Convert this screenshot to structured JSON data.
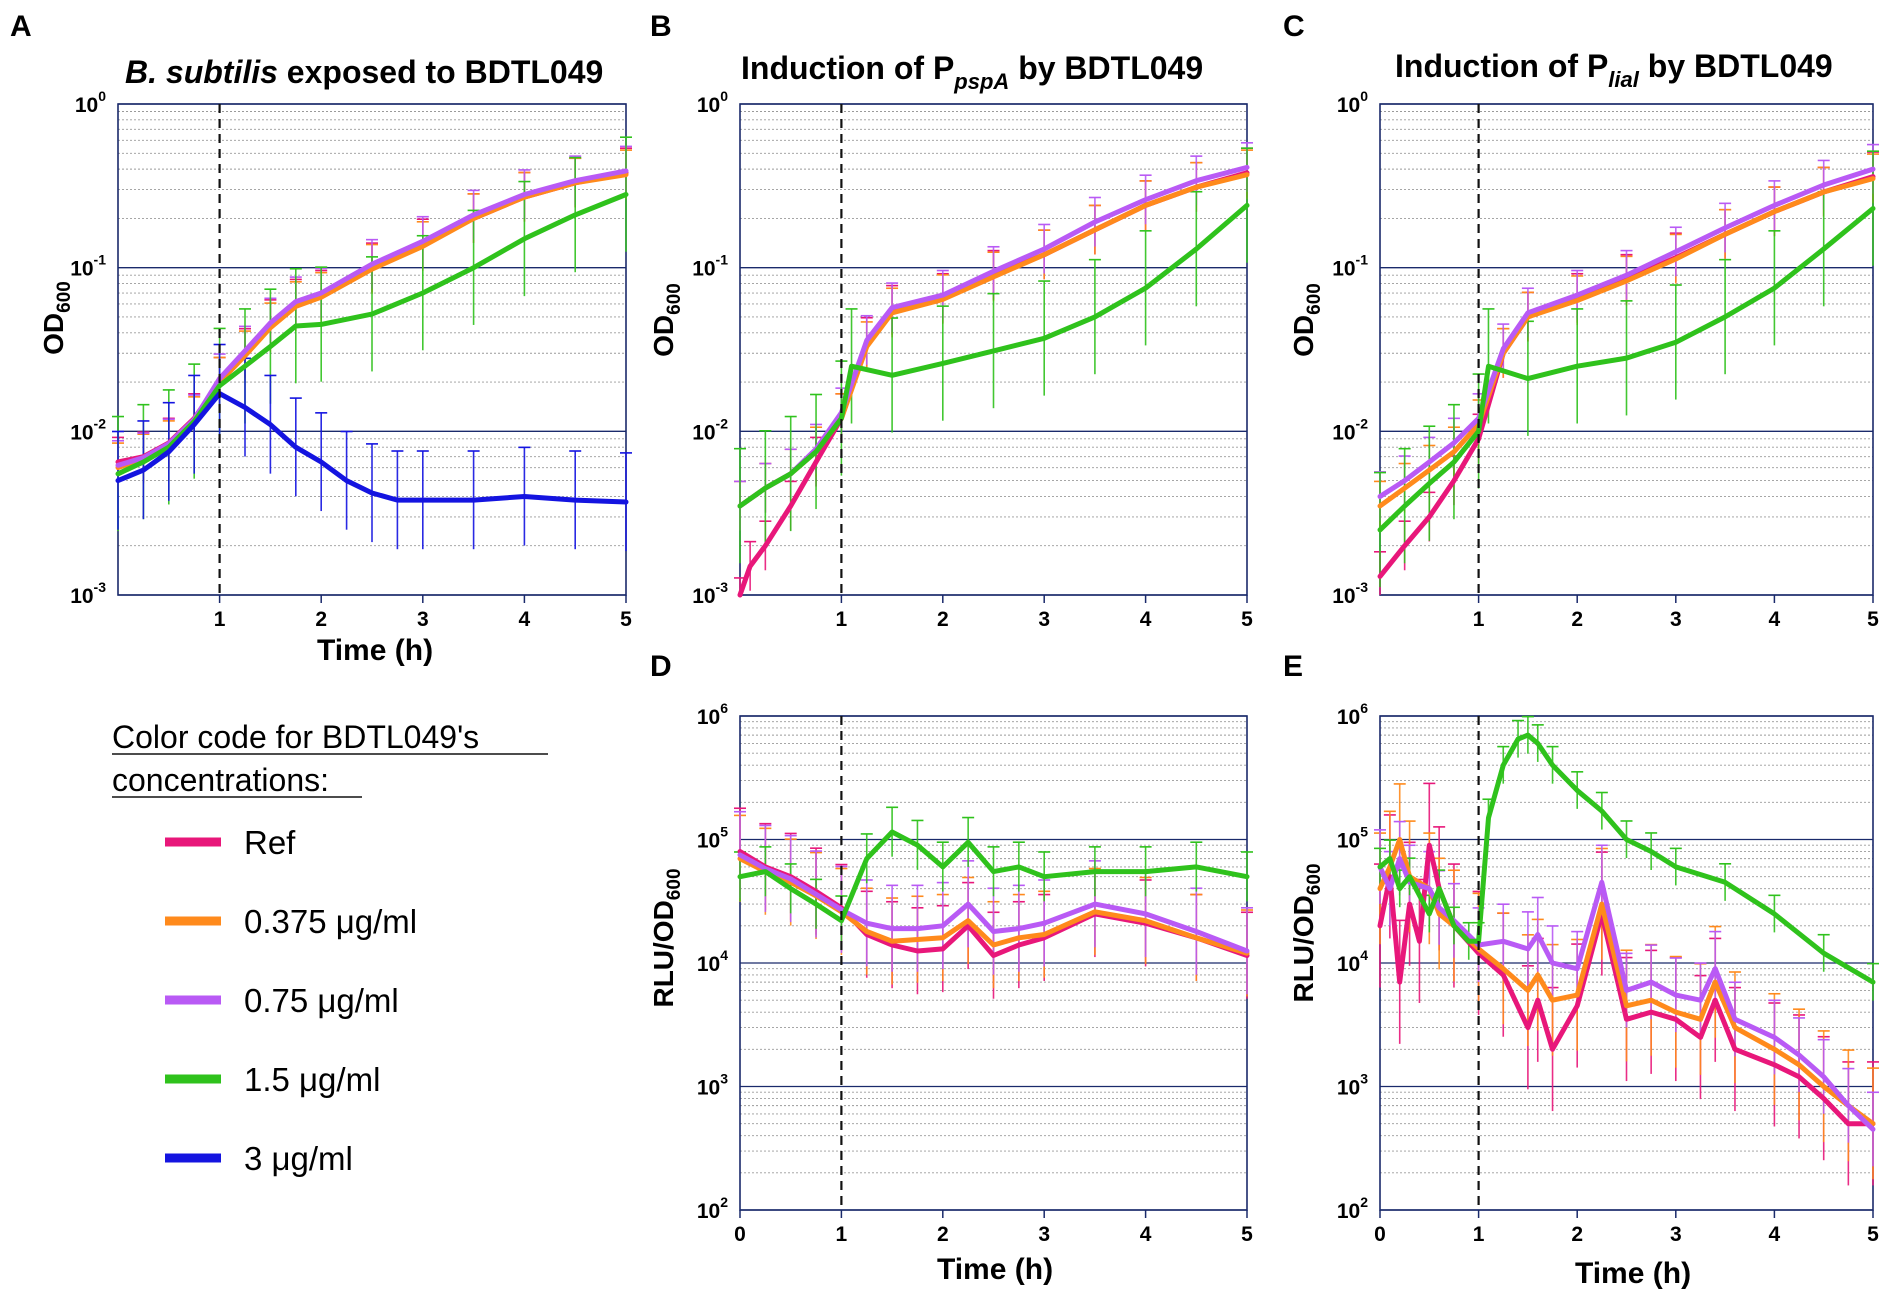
{
  "legend": {
    "title_line1": "Color code for BDTL049's",
    "title_line2": "concentrations:",
    "items": [
      {
        "label": "Ref",
        "color": "#e8177a"
      },
      {
        "label": "0.375 μg/ml",
        "color": "#ff8a1c"
      },
      {
        "label": "0.75 μg/ml",
        "color": "#b95af5"
      },
      {
        "label": "1.5 μg/ml",
        "color": "#2fc21c"
      },
      {
        "label": "3 μg/ml",
        "color": "#1414e0"
      }
    ]
  },
  "chart_data": [
    {
      "id": "A",
      "type": "line",
      "title_italic": "B. subtilis",
      "title_rest": " exposed to BDTL049",
      "ylabel_main": "OD",
      "ylabel_sub": "600",
      "xlabel": "Time (h)",
      "yscale": "log",
      "ylim_exp": [
        -3,
        0
      ],
      "xlim": [
        0,
        5
      ],
      "xticks": [
        1,
        2,
        3,
        4,
        5
      ],
      "vline": 1,
      "series": [
        {
          "name": "Ref",
          "color": "#e8177a",
          "x": [
            0,
            0.25,
            0.5,
            0.75,
            1,
            1.25,
            1.5,
            1.75,
            2,
            2.5,
            3,
            3.5,
            4,
            4.5,
            5
          ],
          "y": [
            0.0065,
            0.007,
            0.0085,
            0.012,
            0.02,
            0.03,
            0.045,
            0.06,
            0.068,
            0.1,
            0.14,
            0.2,
            0.27,
            0.33,
            0.38
          ],
          "err": 0.15
        },
        {
          "name": "0.375 μg/ml",
          "color": "#ff8a1c",
          "x": [
            0,
            0.25,
            0.5,
            0.75,
            1,
            1.25,
            1.5,
            1.75,
            2,
            2.5,
            3,
            3.5,
            4,
            4.5,
            5
          ],
          "y": [
            0.006,
            0.0068,
            0.0082,
            0.0115,
            0.02,
            0.029,
            0.043,
            0.058,
            0.066,
            0.098,
            0.135,
            0.2,
            0.27,
            0.33,
            0.37
          ],
          "err": 0.15
        },
        {
          "name": "0.75 μg/ml",
          "color": "#b95af5",
          "x": [
            0,
            0.25,
            0.5,
            0.75,
            1,
            1.25,
            1.5,
            1.75,
            2,
            2.5,
            3,
            3.5,
            4,
            4.5,
            5
          ],
          "y": [
            0.0062,
            0.0069,
            0.0084,
            0.0118,
            0.021,
            0.031,
            0.046,
            0.062,
            0.07,
            0.105,
            0.145,
            0.21,
            0.28,
            0.34,
            0.39
          ],
          "err": 0.15
        },
        {
          "name": "1.5 μg/ml",
          "color": "#2fc21c",
          "x": [
            0,
            0.25,
            0.5,
            0.75,
            1,
            1.25,
            1.5,
            1.75,
            2,
            2.5,
            3,
            3.5,
            4,
            4.5,
            5
          ],
          "y": [
            0.0055,
            0.0065,
            0.008,
            0.0115,
            0.019,
            0.025,
            0.033,
            0.044,
            0.045,
            0.052,
            0.07,
            0.1,
            0.15,
            0.21,
            0.28
          ],
          "err": 0.35
        },
        {
          "name": "3 μg/ml",
          "color": "#1414e0",
          "x": [
            0,
            0.25,
            0.5,
            0.75,
            1,
            1.25,
            1.5,
            1.75,
            2,
            2.25,
            2.5,
            2.75,
            3,
            3.5,
            4,
            4.5,
            5
          ],
          "y": [
            0.005,
            0.0058,
            0.0075,
            0.011,
            0.017,
            0.014,
            0.011,
            0.008,
            0.0065,
            0.005,
            0.0042,
            0.0038,
            0.0038,
            0.0038,
            0.004,
            0.0038,
            0.0037
          ],
          "err": 0.3
        }
      ]
    },
    {
      "id": "B",
      "type": "line",
      "title_main": "Induction of P",
      "title_sub": "pspA",
      "title_rest": " by BDTL049",
      "ylabel_main": "OD",
      "ylabel_sub": "600",
      "xlabel": "",
      "yscale": "log",
      "ylim_exp": [
        -3,
        0
      ],
      "xlim": [
        0,
        5
      ],
      "xticks": [
        1,
        2,
        3,
        4,
        5
      ],
      "vline": 1,
      "series": [
        {
          "name": "Ref",
          "color": "#e8177a",
          "x": [
            0,
            0.1,
            0.25,
            0.5,
            0.75,
            1,
            1.25,
            1.5,
            2,
            2.5,
            3,
            3.5,
            4,
            4.5,
            5
          ],
          "y": [
            0.0009,
            0.0015,
            0.002,
            0.0035,
            0.0065,
            0.012,
            0.035,
            0.055,
            0.065,
            0.09,
            0.12,
            0.17,
            0.24,
            0.31,
            0.38
          ],
          "err": 0.15
        },
        {
          "name": "0.375 μg/ml",
          "color": "#ff8a1c",
          "x": [
            0,
            0.25,
            0.5,
            0.75,
            1,
            1.25,
            1.5,
            2,
            2.5,
            3,
            3.5,
            4,
            4.5,
            5
          ],
          "y": [
            0.0035,
            0.0045,
            0.0055,
            0.0075,
            0.012,
            0.033,
            0.053,
            0.064,
            0.088,
            0.12,
            0.17,
            0.24,
            0.31,
            0.37
          ],
          "err": 0.15
        },
        {
          "name": "0.75 μg/ml",
          "color": "#b95af5",
          "x": [
            0,
            0.25,
            0.5,
            0.75,
            1,
            1.25,
            1.5,
            2,
            2.5,
            3,
            3.5,
            4,
            4.5,
            5
          ],
          "y": [
            0.0035,
            0.0045,
            0.0055,
            0.0078,
            0.013,
            0.036,
            0.057,
            0.068,
            0.095,
            0.13,
            0.19,
            0.26,
            0.34,
            0.41
          ],
          "err": 0.15
        },
        {
          "name": "1.5 μg/ml",
          "color": "#2fc21c",
          "x": [
            0,
            0.25,
            0.5,
            0.75,
            1,
            1.1,
            1.5,
            2,
            2.5,
            3,
            3.5,
            4,
            4.5,
            5
          ],
          "y": [
            0.0035,
            0.0045,
            0.0055,
            0.0075,
            0.012,
            0.025,
            0.022,
            0.026,
            0.031,
            0.037,
            0.05,
            0.075,
            0.13,
            0.24
          ],
          "err": 0.35
        }
      ]
    },
    {
      "id": "C",
      "type": "line",
      "title_main": "Induction of P",
      "title_sub": "lial",
      "title_rest": " by BDTL049",
      "ylabel_main": "OD",
      "ylabel_sub": "600",
      "xlabel": "",
      "yscale": "log",
      "ylim_exp": [
        -3,
        0
      ],
      "xlim": [
        0,
        5
      ],
      "xticks": [
        1,
        2,
        3,
        4,
        5
      ],
      "vline": 1,
      "series": [
        {
          "name": "Ref",
          "color": "#e8177a",
          "x": [
            0,
            0.25,
            0.5,
            0.75,
            1,
            1.25,
            1.5,
            2,
            2.5,
            3,
            3.5,
            4,
            4.5,
            5
          ],
          "y": [
            0.0013,
            0.002,
            0.003,
            0.005,
            0.009,
            0.03,
            0.05,
            0.065,
            0.085,
            0.115,
            0.16,
            0.22,
            0.29,
            0.36
          ],
          "err": 0.15
        },
        {
          "name": "0.375 μg/ml",
          "color": "#ff8a1c",
          "x": [
            0,
            0.25,
            0.5,
            0.75,
            1,
            1.25,
            1.5,
            2,
            2.5,
            3,
            3.5,
            4,
            4.5,
            5
          ],
          "y": [
            0.0035,
            0.0045,
            0.0058,
            0.0075,
            0.011,
            0.03,
            0.05,
            0.063,
            0.083,
            0.113,
            0.16,
            0.22,
            0.29,
            0.35
          ],
          "err": 0.15
        },
        {
          "name": "0.75 μg/ml",
          "color": "#b95af5",
          "x": [
            0,
            0.25,
            0.5,
            0.75,
            1,
            1.25,
            1.5,
            2,
            2.5,
            3,
            3.5,
            4,
            4.5,
            5
          ],
          "y": [
            0.004,
            0.005,
            0.0065,
            0.0085,
            0.012,
            0.032,
            0.053,
            0.068,
            0.09,
            0.125,
            0.175,
            0.24,
            0.32,
            0.4
          ],
          "err": 0.15
        },
        {
          "name": "1.5 μg/ml",
          "color": "#2fc21c",
          "x": [
            0,
            0.25,
            0.5,
            0.75,
            1,
            1.1,
            1.5,
            2,
            2.5,
            3,
            3.5,
            4,
            4.5,
            5
          ],
          "y": [
            0.0025,
            0.0035,
            0.0048,
            0.0065,
            0.01,
            0.025,
            0.021,
            0.025,
            0.028,
            0.035,
            0.05,
            0.075,
            0.13,
            0.23
          ],
          "err": 0.35
        }
      ]
    },
    {
      "id": "D",
      "type": "line",
      "ylabel_main": "RLU/OD",
      "ylabel_sub": "600",
      "xlabel": "Time (h)",
      "yscale": "log",
      "ylim_exp": [
        2,
        6
      ],
      "xlim": [
        0,
        5
      ],
      "xticks": [
        0,
        1,
        2,
        3,
        4,
        5
      ],
      "vline": 1,
      "series": [
        {
          "name": "Ref",
          "color": "#e8177a",
          "x": [
            0,
            0.25,
            0.5,
            0.75,
            1,
            1.25,
            1.5,
            1.75,
            2,
            2.25,
            2.5,
            2.75,
            3,
            3.5,
            4,
            4.5,
            5
          ],
          "y": [
            80000,
            60000,
            50000,
            38000,
            28000,
            17000,
            14000,
            12500,
            13000,
            20000,
            11500,
            14000,
            16000,
            25000,
            21000,
            16000,
            11500
          ],
          "err": 0.35
        },
        {
          "name": "0.375 μg/ml",
          "color": "#ff8a1c",
          "x": [
            0,
            0.25,
            0.5,
            0.75,
            1,
            1.25,
            1.5,
            1.75,
            2,
            2.25,
            2.5,
            2.75,
            3,
            3.5,
            4,
            4.5,
            5
          ],
          "y": [
            70000,
            55000,
            45000,
            35000,
            26000,
            18000,
            15000,
            15500,
            16000,
            22000,
            14000,
            16000,
            17000,
            26000,
            22000,
            16000,
            12000
          ],
          "err": 0.35
        },
        {
          "name": "0.75 μg/ml",
          "color": "#b95af5",
          "x": [
            0,
            0.25,
            0.5,
            0.75,
            1,
            1.25,
            1.5,
            1.75,
            2,
            2.25,
            2.5,
            2.75,
            3,
            3.5,
            4,
            4.5,
            5
          ],
          "y": [
            75000,
            58000,
            48000,
            36000,
            27000,
            21000,
            19000,
            19000,
            20000,
            30000,
            18000,
            19000,
            21000,
            30000,
            25000,
            18000,
            12500
          ],
          "err": 0.35
        },
        {
          "name": "1.5 μg/ml",
          "color": "#2fc21c",
          "x": [
            0,
            0.25,
            0.5,
            0.75,
            1,
            1.25,
            1.5,
            1.75,
            2,
            2.25,
            2.5,
            2.75,
            3,
            3.5,
            4,
            4.5,
            5
          ],
          "y": [
            50000,
            55000,
            40000,
            30000,
            22000,
            70000,
            115000,
            90000,
            60000,
            95000,
            55000,
            60000,
            50000,
            55000,
            55000,
            60000,
            50000
          ],
          "err": 0.2
        }
      ]
    },
    {
      "id": "E",
      "type": "line",
      "ylabel_main": "RLU/OD",
      "ylabel_sub": "600",
      "xlabel": "Time (h)",
      "yscale": "log",
      "ylim_exp": [
        2,
        6
      ],
      "xlim": [
        0,
        5
      ],
      "xticks": [
        0,
        1,
        2,
        3,
        4,
        5
      ],
      "vline": 1,
      "series": [
        {
          "name": "Ref",
          "color": "#e8177a",
          "x": [
            0,
            0.1,
            0.2,
            0.3,
            0.4,
            0.5,
            0.6,
            0.75,
            1,
            1.25,
            1.5,
            1.6,
            1.75,
            2,
            2.25,
            2.5,
            2.75,
            3,
            3.25,
            3.4,
            3.6,
            4,
            4.25,
            4.5,
            4.75,
            5
          ],
          "y": [
            20000,
            50000,
            7000,
            30000,
            15000,
            90000,
            40000,
            20000,
            12000,
            8000,
            3000,
            5000,
            2000,
            4500,
            25000,
            3500,
            4000,
            3500,
            2500,
            5000,
            2000,
            1500,
            1200,
            800,
            500,
            500
          ],
          "err": 0.5
        },
        {
          "name": "0.375 μg/ml",
          "color": "#ff8a1c",
          "x": [
            0,
            0.1,
            0.2,
            0.3,
            0.5,
            0.6,
            0.75,
            1,
            1.25,
            1.5,
            1.6,
            1.75,
            2,
            2.25,
            2.5,
            2.75,
            3,
            3.25,
            3.4,
            3.6,
            4,
            4.25,
            4.5,
            4.75,
            5
          ],
          "y": [
            40000,
            60000,
            100000,
            50000,
            40000,
            25000,
            20000,
            13000,
            9000,
            6000,
            8000,
            5000,
            5500,
            30000,
            4500,
            5000,
            4000,
            3500,
            7000,
            3000,
            2000,
            1500,
            1000,
            700,
            500
          ],
          "err": 0.45
        },
        {
          "name": "0.75 μg/ml",
          "color": "#b95af5",
          "x": [
            0,
            0.1,
            0.2,
            0.3,
            0.5,
            0.6,
            0.75,
            1,
            1.25,
            1.5,
            1.6,
            1.75,
            2,
            2.25,
            2.5,
            2.75,
            3,
            3.25,
            3.4,
            3.6,
            4,
            4.25,
            4.5,
            4.75,
            5
          ],
          "y": [
            60000,
            40000,
            70000,
            45000,
            40000,
            28000,
            22000,
            14000,
            15000,
            13000,
            17000,
            10000,
            9000,
            45000,
            6000,
            7000,
            5500,
            5000,
            9000,
            3500,
            2500,
            1800,
            1200,
            700,
            450
          ],
          "err": 0.3
        },
        {
          "name": "1.5 μg/ml",
          "color": "#2fc21c",
          "x": [
            0,
            0.1,
            0.2,
            0.3,
            0.5,
            0.6,
            0.75,
            0.9,
            1,
            1.1,
            1.25,
            1.4,
            1.5,
            1.6,
            1.75,
            2,
            2.25,
            2.5,
            2.75,
            3,
            3.5,
            4,
            4.5,
            5
          ],
          "y": [
            60000,
            70000,
            40000,
            50000,
            25000,
            40000,
            20000,
            15000,
            15000,
            150000,
            400000,
            650000,
            700000,
            600000,
            400000,
            250000,
            170000,
            100000,
            80000,
            60000,
            45000,
            25000,
            12000,
            7000
          ],
          "err": 0.15
        }
      ]
    }
  ]
}
